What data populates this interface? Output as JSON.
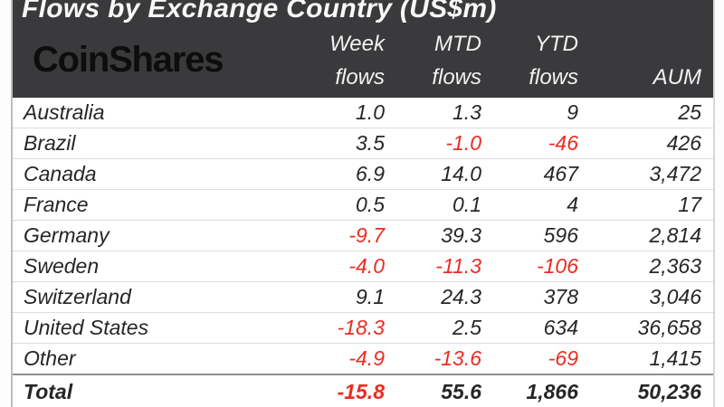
{
  "page": {
    "title": "Flows by Exchange Country (US$m)",
    "brand": "CoinShares"
  },
  "chart_data": {
    "type": "table",
    "title": "Flows by Exchange Country (US$m)",
    "columns": [
      {
        "line1": "Week",
        "line2": "flows"
      },
      {
        "line1": "MTD",
        "line2": "flows"
      },
      {
        "line1": "YTD",
        "line2": "flows"
      },
      {
        "line1": "",
        "line2": "AUM"
      }
    ],
    "rows": [
      {
        "country": "Australia",
        "week": "1.0",
        "mtd": "1.3",
        "ytd": "9",
        "aum": "25"
      },
      {
        "country": "Brazil",
        "week": "3.5",
        "mtd": "-1.0",
        "ytd": "-46",
        "aum": "426"
      },
      {
        "country": "Canada",
        "week": "6.9",
        "mtd": "14.0",
        "ytd": "467",
        "aum": "3,472"
      },
      {
        "country": "France",
        "week": "0.5",
        "mtd": "0.1",
        "ytd": "4",
        "aum": "17"
      },
      {
        "country": "Germany",
        "week": "-9.7",
        "mtd": "39.3",
        "ytd": "596",
        "aum": "2,814"
      },
      {
        "country": "Sweden",
        "week": "-4.0",
        "mtd": "-11.3",
        "ytd": "-106",
        "aum": "2,363"
      },
      {
        "country": "Switzerland",
        "week": "9.1",
        "mtd": "24.3",
        "ytd": "378",
        "aum": "3,046"
      },
      {
        "country": "United States",
        "week": "-18.3",
        "mtd": "2.5",
        "ytd": "634",
        "aum": "36,658"
      },
      {
        "country": "Other",
        "week": "-4.9",
        "mtd": "-13.6",
        "ytd": "-69",
        "aum": "1,415"
      }
    ],
    "total": {
      "country": "Total",
      "week": "-15.8",
      "mtd": "55.6",
      "ytd": "1,866",
      "aum": "50,236"
    },
    "layout": {
      "legend": "none",
      "grid": "row-dividers"
    }
  },
  "colors": {
    "header_bg": "#3a393b",
    "header_text": "#f2f2f2",
    "logo_text": "#0d0d0d",
    "body_text": "#262626",
    "negative": "#ea2c23",
    "row_divider": "#dcdcdc",
    "total_divider": "#8f8f8f"
  }
}
